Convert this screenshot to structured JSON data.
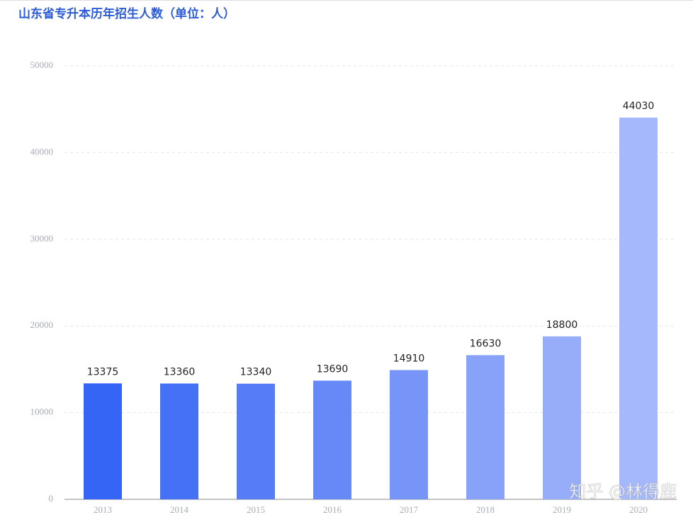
{
  "chart_data": {
    "type": "bar",
    "title": "山东省专升本历年招生人数（单位：人）",
    "categories": [
      "2013",
      "2014",
      "2015",
      "2016",
      "2017",
      "2018",
      "2019",
      "2020"
    ],
    "values": [
      13375,
      13360,
      13340,
      13690,
      14910,
      16630,
      18800,
      44030
    ],
    "colors": [
      "#3465f5",
      "#4571f6",
      "#567df6",
      "#6689f7",
      "#7795f8",
      "#88a1f9",
      "#98adfa",
      "#a5b8fb"
    ],
    "ylim": [
      0,
      50000
    ],
    "yticks": [
      0,
      10000,
      20000,
      30000,
      40000,
      50000
    ],
    "grid": true,
    "watermark": "知乎 @林得鹿"
  }
}
